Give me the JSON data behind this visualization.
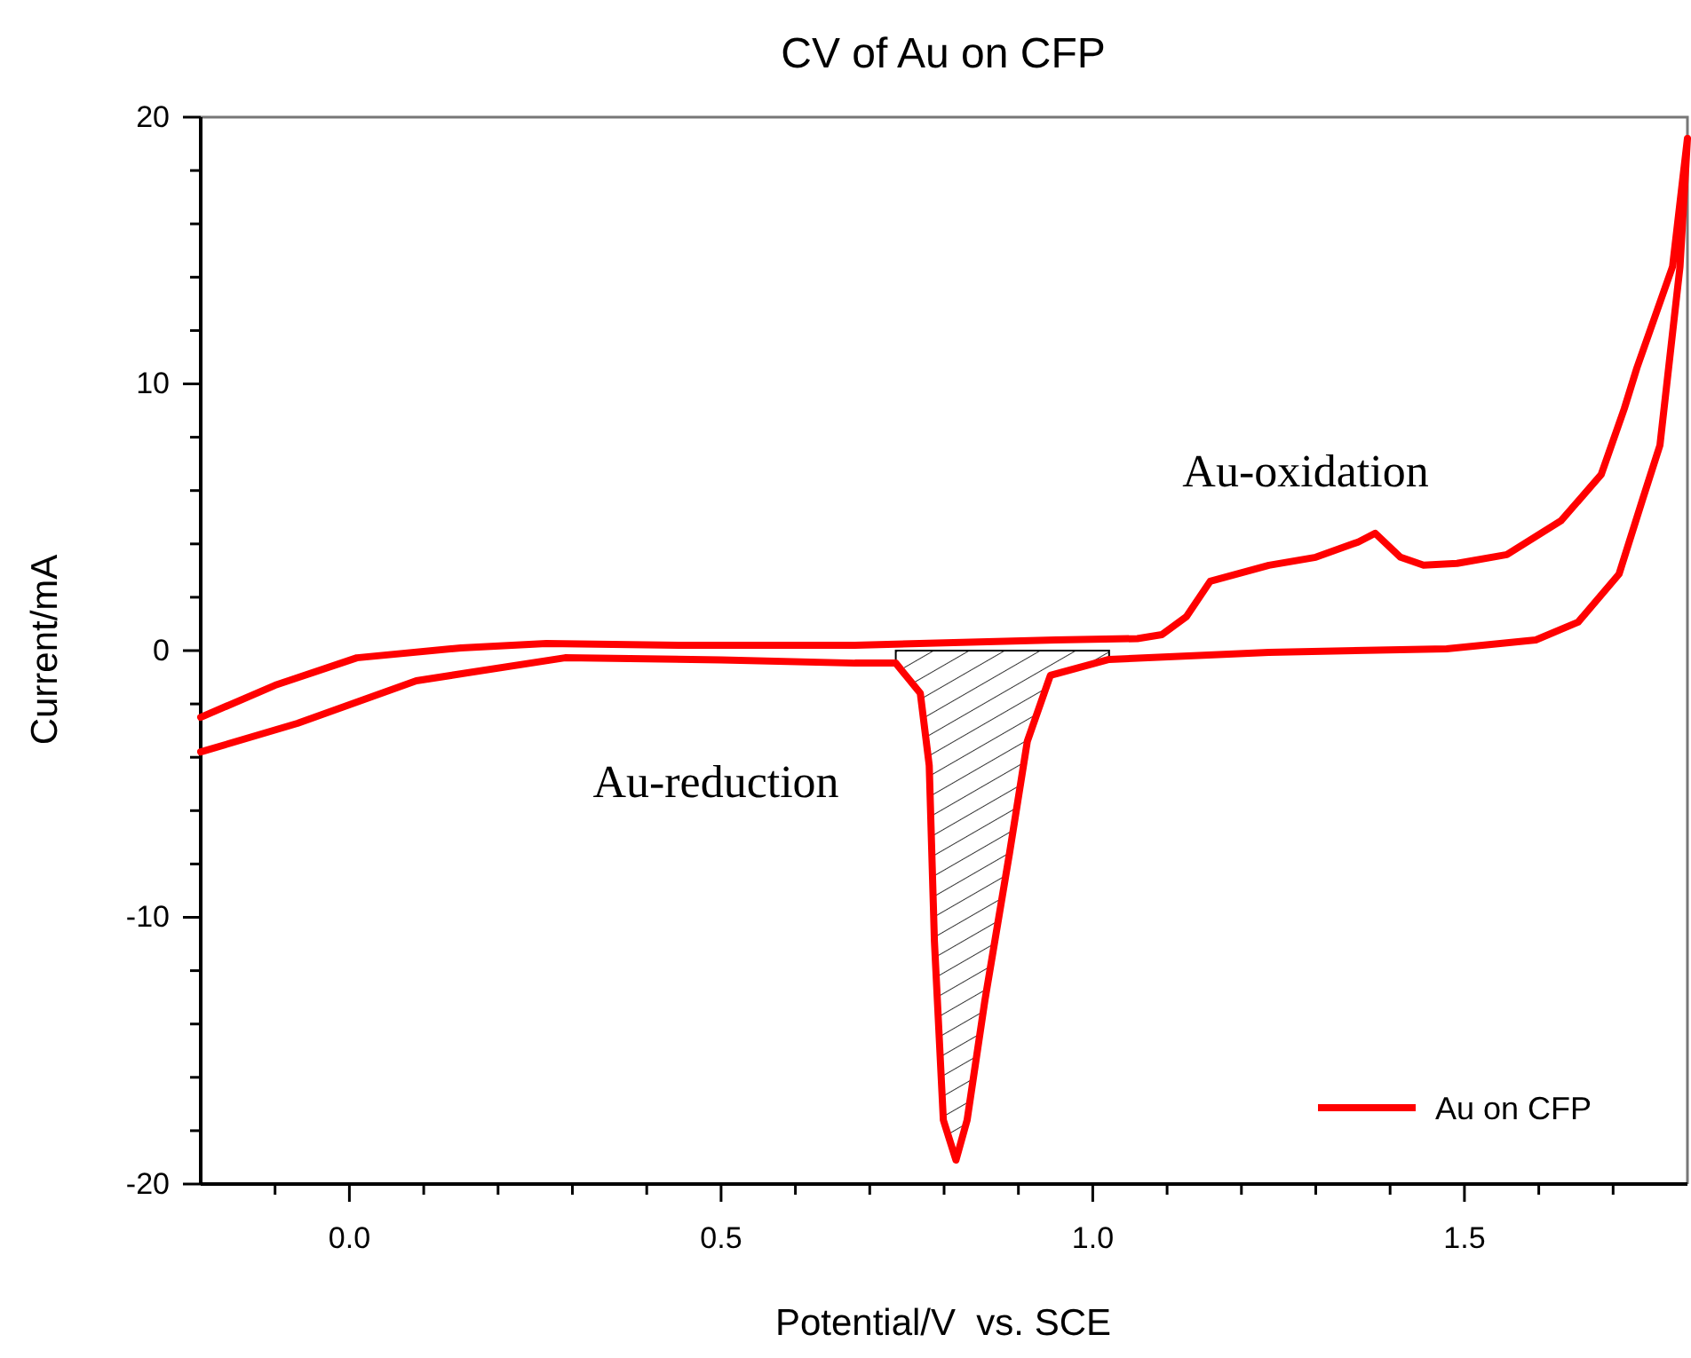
{
  "chart_data": {
    "type": "line",
    "title": "CV of Au on CFP",
    "xlabel": "Potential/V  vs. SCE",
    "ylabel": "Current/mA",
    "xlim": [
      -0.2,
      1.8
    ],
    "ylim": [
      -20,
      20
    ],
    "xticks": [
      {
        "value": -0.1,
        "label": null
      },
      {
        "value": 0,
        "label": "0.0"
      },
      {
        "value": 0.1,
        "label": null
      },
      {
        "value": 0.2,
        "label": null
      },
      {
        "value": 0.3,
        "label": null
      },
      {
        "value": 0.4,
        "label": null
      },
      {
        "value": 0.5,
        "label": "0.5"
      },
      {
        "value": 0.6,
        "label": null
      },
      {
        "value": 0.7,
        "label": null
      },
      {
        "value": 0.8,
        "label": null
      },
      {
        "value": 0.9,
        "label": null
      },
      {
        "value": 1,
        "label": "1.0"
      },
      {
        "value": 1.1,
        "label": null
      },
      {
        "value": 1.2,
        "label": null
      },
      {
        "value": 1.3,
        "label": null
      },
      {
        "value": 1.4,
        "label": null
      },
      {
        "value": 1.5,
        "label": "1.5"
      },
      {
        "value": 1.6,
        "label": null
      },
      {
        "value": 1.7,
        "label": null
      }
    ],
    "yticks": [
      -20,
      {
        "value": -18,
        "label": null
      },
      {
        "value": -16,
        "label": null
      },
      {
        "value": -14,
        "label": null
      },
      {
        "value": -12,
        "label": null
      },
      -10,
      {
        "value": -8,
        "label": null
      },
      {
        "value": -6,
        "label": null
      },
      {
        "value": -4,
        "label": null
      },
      {
        "value": -2,
        "label": null
      },
      0,
      {
        "value": 2,
        "label": null
      },
      {
        "value": 4,
        "label": null
      },
      {
        "value": 6,
        "label": null
      },
      {
        "value": 8,
        "label": null
      },
      10,
      {
        "value": 12,
        "label": null
      },
      {
        "value": 14,
        "label": null
      },
      {
        "value": 16,
        "label": null
      },
      {
        "value": 18,
        "label": null
      },
      20
    ],
    "legend": "bottom right",
    "grid": false,
    "line_style": "solid",
    "marker": "none",
    "series": [
      {
        "name": "Au on CFP",
        "color": "#ff0000",
        "x": [
          -0.2,
          -0.1,
          0.01,
          0.15,
          0.265,
          0.45,
          0.68,
          0.95,
          1.06,
          1.093,
          1.126,
          1.158,
          1.237,
          1.3,
          1.357,
          1.38,
          1.414,
          1.445,
          1.49,
          1.557,
          1.63,
          1.684,
          1.715,
          1.732,
          1.78,
          1.8,
          1.79,
          1.763,
          1.74,
          1.708,
          1.653,
          1.596,
          1.476,
          1.237,
          1.022,
          0.943,
          0.912,
          0.888,
          0.855,
          0.831,
          0.816,
          0.799,
          0.787,
          0.78,
          0.768,
          0.735,
          0.68,
          0.5,
          0.29,
          0.09,
          -0.07,
          -0.2
        ],
        "values": [
          -2.5,
          -1.3,
          -0.27,
          0.1,
          0.27,
          0.2,
          0.2,
          0.4,
          0.45,
          0.6,
          1.27,
          2.6,
          3.2,
          3.5,
          4.07,
          4.4,
          3.5,
          3.2,
          3.27,
          3.6,
          4.87,
          6.6,
          9.07,
          10.6,
          14.4,
          19.2,
          14.4,
          7.7,
          5.7,
          2.87,
          1.07,
          0.4,
          0.07,
          -0.07,
          -0.33,
          -0.93,
          -3.4,
          -7.6,
          -13.1,
          -17.6,
          -19.1,
          -17.6,
          -10.9,
          -4.3,
          -1.6,
          -0.47,
          -0.47,
          -0.35,
          -0.27,
          -1.13,
          -2.73,
          -3.8
        ]
      },
      {
        "type": "area",
        "color": "#000000",
        "x": [
          0.735,
          0.768,
          0.78,
          0.787,
          0.799,
          0.816,
          0.831,
          0.855,
          0.888,
          0.912,
          0.943,
          1.022
        ],
        "values": [
          -0.47,
          -1.6,
          -4.3,
          -10.9,
          -17.6,
          -19.1,
          -17.6,
          -13.1,
          -7.6,
          -3.4,
          -0.93,
          -0.33
        ]
      }
    ],
    "annotations": [
      "Au-oxidation",
      "Au-reduction"
    ]
  }
}
